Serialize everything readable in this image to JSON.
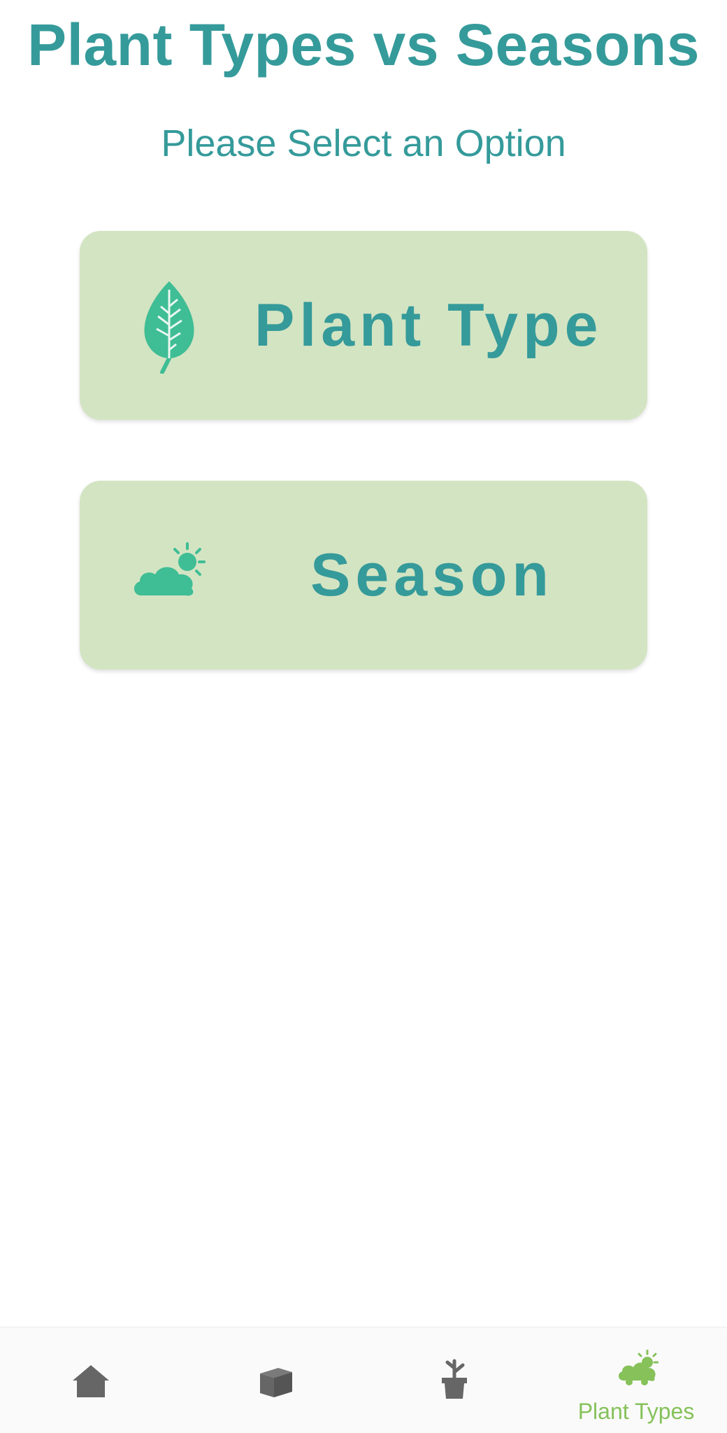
{
  "header": {
    "title": "Plant Types vs Seasons",
    "subtitle": "Please Select an Option"
  },
  "options": [
    {
      "label": "Plant Type",
      "icon": "leaf-icon"
    },
    {
      "label": "Season",
      "icon": "cloud-sun-icon"
    }
  ],
  "bottom_nav": {
    "items": [
      {
        "icon": "home-icon",
        "label": ""
      },
      {
        "icon": "box-icon",
        "label": ""
      },
      {
        "icon": "potted-plant-icon",
        "label": ""
      },
      {
        "icon": "cloud-sun-icon",
        "label": "Plant Types",
        "selected": true
      }
    ]
  },
  "colors": {
    "primary_text": "#359a9a",
    "card_background": "#d3e4c2",
    "icon_green": "#3fbd95",
    "nav_active": "#86c15a",
    "nav_inactive": "#666666"
  }
}
